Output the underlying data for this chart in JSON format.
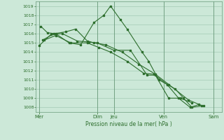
{
  "title": "Pression niveau de la mer( hPa )",
  "bg_color": "#cce8d8",
  "grid_color": "#99c4ac",
  "line_color": "#2d6e2d",
  "ylim": [
    1007.5,
    1019.5
  ],
  "yticks": [
    1008,
    1009,
    1010,
    1011,
    1012,
    1013,
    1014,
    1015,
    1016,
    1017,
    1018,
    1019
  ],
  "xtick_pos": [
    0,
    3.5,
    4.5,
    7.5,
    10.5
  ],
  "xtick_labels": [
    "Mer",
    "Dim",
    "Jeu",
    "Ven",
    "Sam"
  ],
  "vlines": [
    0,
    3.5,
    4.5,
    7.5,
    10.5
  ],
  "xlim": [
    -0.2,
    11.0
  ],
  "series": [
    [
      1014.7,
      1015.9,
      1016.0,
      1015.2,
      1015.1,
      1015.0,
      1014.2,
      1014.2,
      1011.5,
      1011.5,
      1009.0,
      1009.0,
      1008.5
    ],
    [
      1015.3,
      1016.0,
      1016.2,
      1016.5,
      1015.2,
      1015.0,
      1014.8,
      1014.0,
      1012.7,
      1011.6,
      1010.5,
      1008.8,
      1008.2
    ],
    [
      1016.8,
      1016.1,
      1016.0,
      1015.0,
      1014.8,
      1017.2,
      1018.0,
      1019.0,
      1017.5,
      1016.5,
      1014.0,
      1013.0,
      1011.0,
      1010.5,
      1010.0,
      1009.0,
      1008.0,
      1008.2
    ],
    [
      1015.3,
      1015.8,
      1015.0,
      1015.0,
      1014.5,
      1014.0,
      1013.0,
      1011.7,
      1011.6,
      1010.5,
      1009.0,
      1008.0,
      1008.3
    ]
  ],
  "series_x": [
    [
      0,
      0.7,
      1.4,
      2.3,
      3.0,
      3.5,
      4.5,
      5.5,
      6.5,
      7.0,
      7.8,
      8.5,
      9.2
    ],
    [
      0.2,
      0.9,
      1.6,
      2.2,
      2.9,
      3.3,
      4.0,
      5.0,
      6.0,
      7.0,
      7.8,
      9.0,
      9.8
    ],
    [
      0.1,
      0.5,
      1.0,
      1.8,
      2.5,
      3.3,
      3.9,
      4.3,
      4.9,
      5.3,
      6.2,
      6.6,
      7.2,
      7.7,
      8.2,
      8.7,
      9.2,
      9.9
    ],
    [
      0.3,
      1.0,
      1.9,
      2.9,
      3.6,
      4.3,
      5.3,
      6.3,
      6.9,
      7.7,
      8.4,
      9.1,
      9.6
    ]
  ]
}
